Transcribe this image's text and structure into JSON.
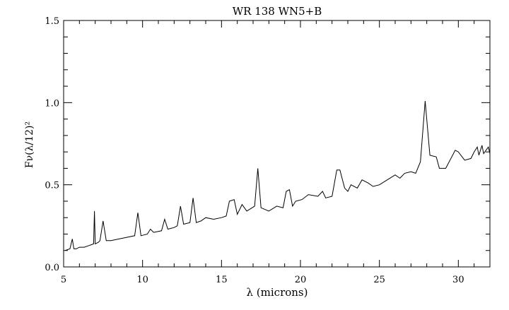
{
  "chart_data": {
    "type": "line",
    "title": "WR 138 WN5+B",
    "xlabel": "λ (microns)",
    "ylabel": "Fν(λ/12)²",
    "ylabel_parts": {
      "base": "F",
      "sub": "ν",
      "mid": "(λ/12)",
      "sup": "2"
    },
    "xlim": [
      5,
      32
    ],
    "ylim": [
      0,
      1.5
    ],
    "xticks": [
      5,
      10,
      15,
      20,
      25,
      30
    ],
    "xtick_labels": [
      "5",
      "10",
      "15",
      "20",
      "25",
      "30"
    ],
    "yticks": [
      0,
      0.5,
      1,
      1.5
    ],
    "ytick_labels": [
      "0.0",
      "0.5",
      "1.0",
      "1.5"
    ],
    "grid": false,
    "line_color": "#000000",
    "x": [
      5.1,
      5.4,
      5.55,
      5.65,
      5.8,
      6.0,
      6.3,
      6.6,
      6.9,
      6.95,
      7.0,
      7.2,
      7.3,
      7.5,
      7.7,
      8.0,
      8.5,
      9.0,
      9.5,
      9.7,
      9.9,
      10.3,
      10.5,
      10.7,
      11.2,
      11.4,
      11.6,
      12.0,
      12.2,
      12.4,
      12.6,
      13.0,
      13.2,
      13.4,
      13.7,
      14.0,
      14.5,
      15.0,
      15.3,
      15.5,
      15.8,
      16.0,
      16.3,
      16.6,
      17.1,
      17.3,
      17.5,
      18.0,
      18.5,
      18.9,
      19.1,
      19.3,
      19.5,
      19.7,
      20.1,
      20.5,
      21.1,
      21.4,
      21.6,
      22.0,
      22.3,
      22.5,
      22.8,
      23.0,
      23.2,
      23.6,
      23.9,
      24.3,
      24.6,
      25.0,
      25.5,
      26.0,
      26.3,
      26.6,
      27.0,
      27.3,
      27.6,
      27.9,
      28.2,
      28.6,
      28.8,
      29.2,
      29.8,
      30.0,
      30.4,
      30.8,
      31.0,
      31.2,
      31.3,
      31.5,
      31.6,
      31.9,
      32.0
    ],
    "y": [
      0.1,
      0.11,
      0.17,
      0.11,
      0.11,
      0.12,
      0.12,
      0.13,
      0.14,
      0.34,
      0.14,
      0.15,
      0.16,
      0.28,
      0.16,
      0.16,
      0.17,
      0.18,
      0.19,
      0.33,
      0.19,
      0.2,
      0.23,
      0.21,
      0.22,
      0.29,
      0.23,
      0.24,
      0.25,
      0.37,
      0.26,
      0.27,
      0.42,
      0.27,
      0.28,
      0.3,
      0.29,
      0.3,
      0.31,
      0.4,
      0.41,
      0.32,
      0.38,
      0.34,
      0.37,
      0.6,
      0.36,
      0.34,
      0.37,
      0.36,
      0.46,
      0.47,
      0.37,
      0.4,
      0.41,
      0.44,
      0.43,
      0.46,
      0.42,
      0.43,
      0.59,
      0.59,
      0.48,
      0.46,
      0.5,
      0.48,
      0.53,
      0.51,
      0.49,
      0.5,
      0.53,
      0.56,
      0.54,
      0.57,
      0.58,
      0.57,
      0.64,
      1.01,
      0.68,
      0.67,
      0.6,
      0.6,
      0.71,
      0.7,
      0.65,
      0.66,
      0.7,
      0.73,
      0.68,
      0.74,
      0.69,
      0.73,
      0.69
    ]
  }
}
